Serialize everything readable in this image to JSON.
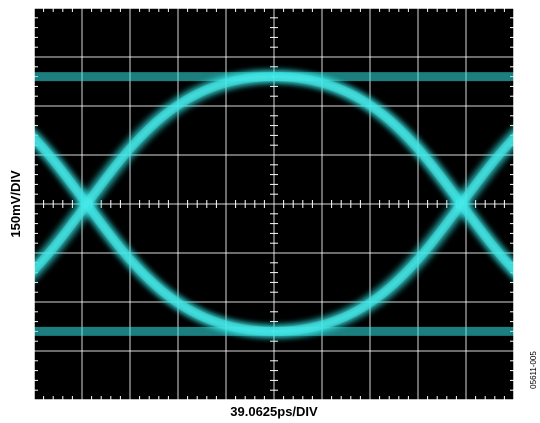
{
  "chart_data": {
    "type": "eye-diagram",
    "xlabel": "39.0625ps/DIV",
    "ylabel": "150mV/DIV",
    "figure_id": "05611-005",
    "divisions": {
      "x": 10,
      "y": 8
    },
    "minor_ticks_per_division": 5,
    "grid": true,
    "background_color": "#000000",
    "grid_color": "#ffffff",
    "trace_color": "#33e6e6",
    "eye": {
      "upper_level_div": 2.6,
      "lower_level_div": -2.6,
      "crossing_level_div": 0.0,
      "crossing_times_div": [
        -3.9,
        3.9
      ]
    }
  }
}
